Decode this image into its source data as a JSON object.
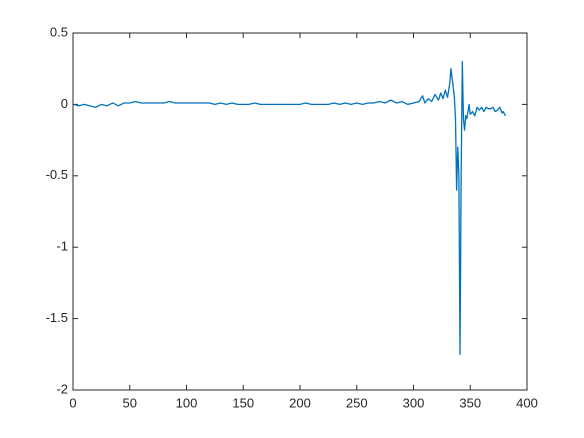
{
  "chart_data": {
    "type": "line",
    "x": [
      1,
      5,
      10,
      15,
      20,
      25,
      30,
      35,
      40,
      45,
      50,
      55,
      60,
      65,
      70,
      75,
      80,
      85,
      90,
      95,
      100,
      105,
      110,
      115,
      120,
      125,
      130,
      135,
      140,
      145,
      150,
      155,
      160,
      165,
      170,
      175,
      180,
      185,
      190,
      195,
      200,
      205,
      210,
      215,
      220,
      225,
      230,
      235,
      240,
      245,
      250,
      255,
      260,
      265,
      270,
      275,
      280,
      285,
      290,
      295,
      300,
      305,
      308,
      310,
      313,
      316,
      319,
      322,
      324,
      326,
      328,
      330,
      332,
      333,
      335,
      336,
      337,
      338,
      339,
      340,
      341,
      342,
      343,
      344,
      345,
      346,
      347,
      349,
      350,
      352,
      354,
      356,
      358,
      360,
      362,
      364,
      366,
      368,
      370,
      372,
      374,
      376,
      378,
      379,
      381
    ],
    "series": [
      {
        "color": "#0072bd",
        "values": [
          0,
          -0.01,
          0,
          -0.01,
          -0.02,
          0,
          -0.01,
          0.01,
          -0.01,
          0.01,
          0.01,
          0.02,
          0.01,
          0.01,
          0.01,
          0.01,
          0.01,
          0.02,
          0.01,
          0.01,
          0.01,
          0.01,
          0.01,
          0.01,
          0.01,
          0,
          0.01,
          0,
          0.01,
          0,
          0,
          0,
          0.01,
          0,
          0,
          0,
          0,
          0,
          0,
          0,
          0,
          0.01,
          0,
          0,
          0,
          0,
          0.01,
          0,
          0.01,
          0,
          0.01,
          0,
          0.01,
          0.01,
          0.02,
          0.01,
          0.03,
          0.01,
          0.02,
          0,
          0.01,
          0.02,
          0.06,
          0.01,
          0.04,
          0.02,
          0.07,
          0.03,
          0.08,
          0.04,
          0.1,
          0.05,
          0.15,
          0.25,
          0.12,
          0.05,
          -0.1,
          -0.6,
          -0.3,
          -0.5,
          -1.75,
          -0.5,
          0.3,
          -0.1,
          -0.18,
          -0.08,
          -0.1,
          0,
          -0.07,
          -0.05,
          -0.08,
          -0.02,
          -0.04,
          -0.02,
          -0.05,
          -0.02,
          -0.03,
          -0.03,
          -0.02,
          -0.05,
          -0.04,
          -0.02,
          -0.06,
          -0.05,
          -0.08
        ]
      }
    ],
    "xlim": [
      0,
      400
    ],
    "ylim": [
      -2,
      0.5
    ],
    "xticks": [
      0,
      50,
      100,
      150,
      200,
      250,
      300,
      350,
      400
    ],
    "yticks": [
      -2,
      -1.5,
      -1,
      -0.5,
      0,
      0.5
    ]
  }
}
